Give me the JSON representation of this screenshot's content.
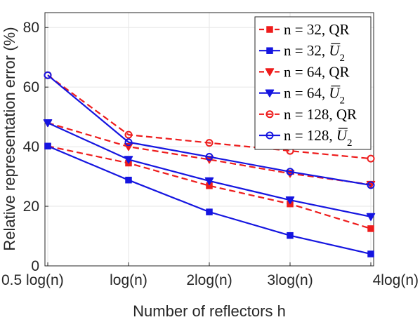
{
  "chart_data": {
    "type": "line",
    "title": "",
    "xlabel": "Number of reflectors h",
    "ylabel": "Relative representation error (%)",
    "categories": [
      "0.5 log(n)",
      "log(n)",
      "2log(n)",
      "3log(n)",
      "4log(n)"
    ],
    "ylim": [
      0,
      85
    ],
    "yticks": [
      0,
      20,
      40,
      60,
      80
    ],
    "grid": true,
    "legend_position": "top-right",
    "series": [
      {
        "name": "n = 32, QR",
        "name_main": "n = 32, ",
        "name_method": "QR",
        "method_style": "roman",
        "color": "#ee1c1c",
        "dash": true,
        "marker": "square",
        "values": [
          40.2,
          34.5,
          26.9,
          20.8,
          12.5
        ]
      },
      {
        "name": "n = 32, Ū2",
        "name_main": "n = 32, ",
        "name_method": "U",
        "name_sub": "2",
        "method_style": "italic-bar",
        "color": "#1515e0",
        "dash": false,
        "marker": "square",
        "values": [
          40.2,
          28.8,
          18.1,
          10.2,
          4.0
        ]
      },
      {
        "name": "n = 64, QR",
        "name_main": "n = 64, ",
        "name_method": "QR",
        "method_style": "roman",
        "color": "#ee1c1c",
        "dash": true,
        "marker": "triangle-down",
        "values": [
          48.0,
          40.0,
          35.7,
          31.0,
          27.3
        ]
      },
      {
        "name": "n = 64, Ū2",
        "name_main": "n = 64, ",
        "name_method": "U",
        "name_sub": "2",
        "method_style": "italic-bar",
        "color": "#1515e0",
        "dash": false,
        "marker": "triangle-down",
        "values": [
          48.0,
          35.7,
          28.5,
          22.1,
          16.5
        ]
      },
      {
        "name": "n = 128, QR",
        "name_main": "n = 128, ",
        "name_method": "QR",
        "method_style": "roman",
        "color": "#ee1c1c",
        "dash": true,
        "marker": "circle",
        "values": [
          64.0,
          44.0,
          41.3,
          38.6,
          36.0
        ]
      },
      {
        "name": "n = 128, Ū2",
        "name_main": "n = 128, ",
        "name_method": "U",
        "name_sub": "2",
        "method_style": "italic-bar",
        "color": "#1515e0",
        "dash": false,
        "marker": "circle",
        "values": [
          64.0,
          41.5,
          36.6,
          31.6,
          27.1
        ]
      }
    ]
  }
}
